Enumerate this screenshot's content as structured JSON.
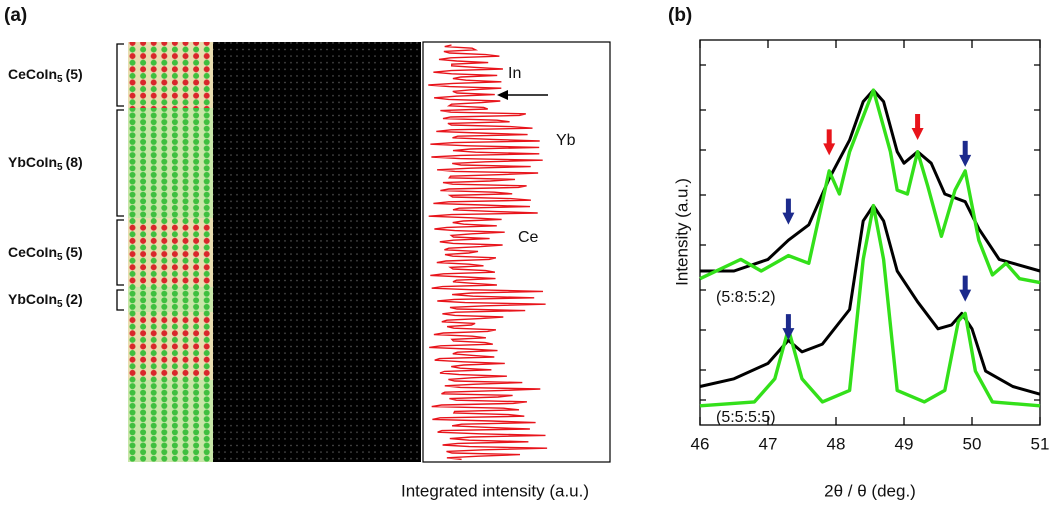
{
  "panel_a": {
    "label": "(a)",
    "layers": [
      {
        "formula": "CeCoIn",
        "subscript": "5",
        "count": "(5)"
      },
      {
        "formula": "YbCoIn",
        "subscript": "5",
        "count": "(8)"
      },
      {
        "formula": "CeCoIn",
        "subscript": "5",
        "count": "(5)"
      },
      {
        "formula": "YbCoIn",
        "subscript": "5",
        "count": "(2)"
      }
    ],
    "annotations": [
      "In",
      "Yb",
      "Ce"
    ],
    "xlabel": "Integrated intensity (a.u.)"
  },
  "chart_data": {
    "type": "line",
    "label": "(b)",
    "xlabel": "2θ / θ (deg.)",
    "ylabel": "Intensity (a.u.)",
    "xlim": [
      46,
      51
    ],
    "xticks": [
      46,
      47,
      48,
      49,
      50,
      51
    ],
    "ylim": [
      0,
      100
    ],
    "series": [
      {
        "color": "#000000",
        "x": [
          46,
          46.5,
          47,
          47.3,
          47.6,
          47.9,
          48.2,
          48.4,
          48.55,
          48.7,
          48.9,
          49.0,
          49.2,
          49.4,
          49.6,
          49.9,
          50.1,
          50.4,
          51
        ],
        "values": [
          40,
          40,
          43,
          48,
          52,
          64,
          74,
          84,
          87,
          84,
          71,
          68,
          71,
          68,
          60,
          58,
          51,
          43,
          40
        ]
      },
      {
        "color": "#33e01a",
        "x": [
          46,
          46.6,
          46.9,
          47.3,
          47.6,
          47.9,
          48.05,
          48.2,
          48.55,
          48.8,
          48.9,
          49.05,
          49.2,
          49.35,
          49.55,
          49.75,
          49.9,
          50.1,
          50.3,
          50.5,
          50.7,
          51
        ],
        "values": [
          38,
          43,
          40,
          44,
          42,
          66,
          60,
          71,
          87,
          71,
          61,
          60,
          71,
          62,
          49,
          61,
          66,
          48,
          39,
          42,
          38,
          37
        ]
      },
      {
        "color": "#000000",
        "x": [
          46,
          46.5,
          47,
          47.3,
          47.5,
          47.8,
          48.2,
          48.4,
          48.55,
          48.7,
          48.9,
          49.2,
          49.5,
          49.7,
          49.85,
          50.0,
          50.2,
          50.6,
          51
        ],
        "values": [
          10,
          12,
          16,
          22,
          19,
          21,
          30,
          53,
          57,
          53,
          40,
          32,
          25,
          26,
          29,
          25,
          14,
          10,
          8
        ]
      },
      {
        "color": "#33e01a",
        "x": [
          46,
          46.8,
          47.1,
          47.3,
          47.5,
          47.8,
          48.2,
          48.4,
          48.55,
          48.7,
          48.9,
          49.3,
          49.6,
          49.8,
          49.9,
          50.05,
          50.3,
          51
        ],
        "values": [
          5,
          6,
          12,
          25,
          12,
          6,
          9,
          43,
          57,
          43,
          9,
          6,
          9,
          27,
          29,
          14,
          6,
          5
        ]
      }
    ],
    "arrows": [
      {
        "x": 47.9,
        "y": 69,
        "color": "#e8141b"
      },
      {
        "x": 49.2,
        "y": 73,
        "color": "#e8141b"
      },
      {
        "x": 47.3,
        "y": 51,
        "color": "#1c2a8c"
      },
      {
        "x": 49.9,
        "y": 66,
        "color": "#1c2a8c"
      },
      {
        "x": 47.3,
        "y": 21,
        "color": "#1c2a8c"
      },
      {
        "x": 49.9,
        "y": 31,
        "color": "#1c2a8c"
      }
    ],
    "annotations": [
      "(5:8:5:2)",
      "(5:5:5:5)"
    ]
  }
}
